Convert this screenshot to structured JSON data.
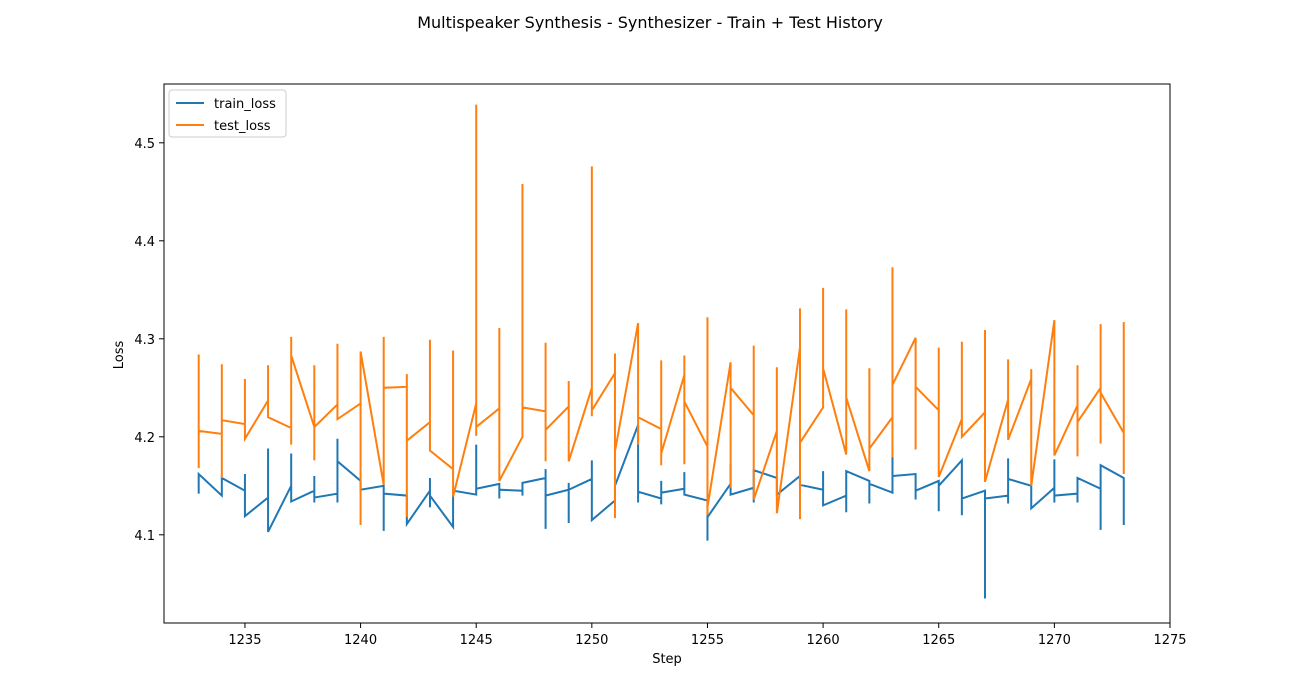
{
  "chart_data": {
    "type": "line",
    "title": "Multispeaker Synthesis - Synthesizer - Train + Test History",
    "xlabel": "Step",
    "ylabel": "Loss",
    "xlim": [
      1231.5,
      1275
    ],
    "ylim": [
      4.01,
      4.56
    ],
    "xticks": [
      1235,
      1240,
      1245,
      1250,
      1255,
      1260,
      1265,
      1270,
      1275
    ],
    "yticks": [
      4.1,
      4.2,
      4.3,
      4.4,
      4.5
    ],
    "grid": false,
    "legend_position": "top-left",
    "series": [
      {
        "name": "train_loss",
        "color": "#1f77b4",
        "points": [
          [
            1233,
            4.142
          ],
          [
            1233,
            4.162
          ],
          [
            1234,
            4.14
          ],
          [
            1234,
            4.158
          ],
          [
            1235,
            4.145
          ],
          [
            1235,
            4.162
          ],
          [
            1235,
            4.119
          ],
          [
            1236,
            4.138
          ],
          [
            1236,
            4.188
          ],
          [
            1236,
            4.103
          ],
          [
            1237,
            4.15
          ],
          [
            1237,
            4.183
          ],
          [
            1237,
            4.134
          ],
          [
            1238,
            4.145
          ],
          [
            1238,
            4.16
          ],
          [
            1238,
            4.133
          ],
          [
            1238,
            4.138
          ],
          [
            1239,
            4.142
          ],
          [
            1239,
            4.133
          ],
          [
            1239,
            4.198
          ],
          [
            1239,
            4.175
          ],
          [
            1240,
            4.155
          ],
          [
            1240,
            4.146
          ],
          [
            1241,
            4.15
          ],
          [
            1241,
            4.104
          ],
          [
            1241,
            4.142
          ],
          [
            1242,
            4.14
          ],
          [
            1242,
            4.111
          ],
          [
            1243,
            4.145
          ],
          [
            1243,
            4.128
          ],
          [
            1243,
            4.158
          ],
          [
            1243,
            4.14
          ],
          [
            1244,
            4.108
          ],
          [
            1244,
            4.145
          ],
          [
            1245,
            4.141
          ],
          [
            1245,
            4.192
          ],
          [
            1245,
            4.147
          ],
          [
            1246,
            4.152
          ],
          [
            1246,
            4.137
          ],
          [
            1246,
            4.146
          ],
          [
            1247,
            4.145
          ],
          [
            1247,
            4.14
          ],
          [
            1247,
            4.153
          ],
          [
            1248,
            4.158
          ],
          [
            1248,
            4.106
          ],
          [
            1248,
            4.167
          ],
          [
            1248,
            4.14
          ],
          [
            1249,
            4.146
          ],
          [
            1249,
            4.112
          ],
          [
            1249,
            4.153
          ],
          [
            1249,
            4.146
          ],
          [
            1250,
            4.157
          ],
          [
            1250,
            4.176
          ],
          [
            1250,
            4.115
          ],
          [
            1251,
            4.135
          ],
          [
            1251,
            4.15
          ],
          [
            1252,
            4.212
          ],
          [
            1252,
            4.133
          ],
          [
            1252,
            4.144
          ],
          [
            1253,
            4.137
          ],
          [
            1253,
            4.131
          ],
          [
            1253,
            4.155
          ],
          [
            1253,
            4.143
          ],
          [
            1254,
            4.147
          ],
          [
            1254,
            4.164
          ],
          [
            1254,
            4.141
          ],
          [
            1255,
            4.135
          ],
          [
            1255,
            4.094
          ],
          [
            1255,
            4.118
          ],
          [
            1256,
            4.152
          ],
          [
            1256,
            4.172
          ],
          [
            1256,
            4.141
          ],
          [
            1257,
            4.148
          ],
          [
            1257,
            4.133
          ],
          [
            1257,
            4.166
          ],
          [
            1258,
            4.158
          ],
          [
            1258,
            4.141
          ],
          [
            1259,
            4.16
          ],
          [
            1259,
            4.151
          ],
          [
            1260,
            4.146
          ],
          [
            1260,
            4.165
          ],
          [
            1260,
            4.13
          ],
          [
            1261,
            4.14
          ],
          [
            1261,
            4.123
          ],
          [
            1261,
            4.165
          ],
          [
            1262,
            4.155
          ],
          [
            1262,
            4.132
          ],
          [
            1262,
            4.152
          ],
          [
            1263,
            4.143
          ],
          [
            1263,
            4.183
          ],
          [
            1263,
            4.16
          ],
          [
            1264,
            4.162
          ],
          [
            1264,
            4.136
          ],
          [
            1264,
            4.145
          ],
          [
            1265,
            4.155
          ],
          [
            1265,
            4.124
          ],
          [
            1265,
            4.15
          ],
          [
            1266,
            4.176
          ],
          [
            1266,
            4.12
          ],
          [
            1266,
            4.137
          ],
          [
            1267,
            4.145
          ],
          [
            1267,
            4.035
          ],
          [
            1267,
            4.137
          ],
          [
            1268,
            4.14
          ],
          [
            1268,
            4.132
          ],
          [
            1268,
            4.178
          ],
          [
            1268,
            4.157
          ],
          [
            1269,
            4.15
          ],
          [
            1269,
            4.127
          ],
          [
            1270,
            4.148
          ],
          [
            1270,
            4.177
          ],
          [
            1270,
            4.133
          ],
          [
            1270,
            4.14
          ],
          [
            1271,
            4.142
          ],
          [
            1271,
            4.133
          ],
          [
            1271,
            4.158
          ],
          [
            1272,
            4.147
          ],
          [
            1272,
            4.105
          ],
          [
            1272,
            4.171
          ],
          [
            1273,
            4.158
          ],
          [
            1273,
            4.11
          ],
          [
            1273,
            4.143
          ]
        ]
      },
      {
        "name": "test_loss",
        "color": "#ff7f0e",
        "points": [
          [
            1233,
            4.168
          ],
          [
            1233,
            4.284
          ],
          [
            1233,
            4.206
          ],
          [
            1234,
            4.203
          ],
          [
            1234,
            4.274
          ],
          [
            1234,
            4.158
          ],
          [
            1234,
            4.217
          ],
          [
            1235,
            4.213
          ],
          [
            1235,
            4.259
          ],
          [
            1235,
            4.198
          ],
          [
            1236,
            4.237
          ],
          [
            1236,
            4.273
          ],
          [
            1236,
            4.22
          ],
          [
            1237,
            4.209
          ],
          [
            1237,
            4.302
          ],
          [
            1237,
            4.192
          ],
          [
            1237,
            4.283
          ],
          [
            1238,
            4.21
          ],
          [
            1238,
            4.273
          ],
          [
            1238,
            4.176
          ],
          [
            1238,
            4.21
          ],
          [
            1239,
            4.233
          ],
          [
            1239,
            4.295
          ],
          [
            1239,
            4.218
          ],
          [
            1240,
            4.234
          ],
          [
            1240,
            4.11
          ],
          [
            1240,
            4.287
          ],
          [
            1241,
            4.151
          ],
          [
            1241,
            4.302
          ],
          [
            1241,
            4.25
          ],
          [
            1242,
            4.251
          ],
          [
            1242,
            4.264
          ],
          [
            1242,
            4.118
          ],
          [
            1242,
            4.196
          ],
          [
            1243,
            4.215
          ],
          [
            1243,
            4.299
          ],
          [
            1243,
            4.186
          ],
          [
            1244,
            4.167
          ],
          [
            1244,
            4.288
          ],
          [
            1244,
            4.139
          ],
          [
            1245,
            4.234
          ],
          [
            1245,
            4.539
          ],
          [
            1245,
            4.201
          ],
          [
            1245,
            4.21
          ],
          [
            1246,
            4.229
          ],
          [
            1246,
            4.311
          ],
          [
            1246,
            4.155
          ],
          [
            1247,
            4.2
          ],
          [
            1247,
            4.458
          ],
          [
            1247,
            4.23
          ],
          [
            1248,
            4.226
          ],
          [
            1248,
            4.296
          ],
          [
            1248,
            4.175
          ],
          [
            1248,
            4.207
          ],
          [
            1249,
            4.231
          ],
          [
            1249,
            4.257
          ],
          [
            1249,
            4.175
          ],
          [
            1250,
            4.25
          ],
          [
            1250,
            4.476
          ],
          [
            1250,
            4.221
          ],
          [
            1250,
            4.227
          ],
          [
            1251,
            4.265
          ],
          [
            1251,
            4.285
          ],
          [
            1251,
            4.117
          ],
          [
            1251,
            4.185
          ],
          [
            1252,
            4.316
          ],
          [
            1252,
            4.192
          ],
          [
            1252,
            4.22
          ],
          [
            1253,
            4.208
          ],
          [
            1253,
            4.278
          ],
          [
            1253,
            4.171
          ],
          [
            1253,
            4.183
          ],
          [
            1254,
            4.263
          ],
          [
            1254,
            4.283
          ],
          [
            1254,
            4.172
          ],
          [
            1254,
            4.236
          ],
          [
            1255,
            4.19
          ],
          [
            1255,
            4.322
          ],
          [
            1255,
            4.12
          ],
          [
            1255,
            4.128
          ],
          [
            1256,
            4.276
          ],
          [
            1256,
            4.148
          ],
          [
            1256,
            4.25
          ],
          [
            1257,
            4.222
          ],
          [
            1257,
            4.293
          ],
          [
            1257,
            4.136
          ],
          [
            1258,
            4.206
          ],
          [
            1258,
            4.271
          ],
          [
            1258,
            4.122
          ],
          [
            1259,
            4.291
          ],
          [
            1259,
            4.331
          ],
          [
            1259,
            4.116
          ],
          [
            1259,
            4.194
          ],
          [
            1260,
            4.23
          ],
          [
            1260,
            4.352
          ],
          [
            1260,
            4.27
          ],
          [
            1261,
            4.182
          ],
          [
            1261,
            4.33
          ],
          [
            1261,
            4.24
          ],
          [
            1262,
            4.165
          ],
          [
            1262,
            4.27
          ],
          [
            1262,
            4.188
          ],
          [
            1263,
            4.22
          ],
          [
            1263,
            4.373
          ],
          [
            1263,
            4.179
          ],
          [
            1263,
            4.253
          ],
          [
            1264,
            4.301
          ],
          [
            1264,
            4.187
          ],
          [
            1264,
            4.251
          ],
          [
            1265,
            4.227
          ],
          [
            1265,
            4.291
          ],
          [
            1265,
            4.159
          ],
          [
            1266,
            4.218
          ],
          [
            1266,
            4.297
          ],
          [
            1266,
            4.2
          ],
          [
            1267,
            4.225
          ],
          [
            1267,
            4.309
          ],
          [
            1267,
            4.154
          ],
          [
            1268,
            4.238
          ],
          [
            1268,
            4.279
          ],
          [
            1268,
            4.197
          ],
          [
            1269,
            4.259
          ],
          [
            1269,
            4.269
          ],
          [
            1269,
            4.15
          ],
          [
            1270,
            4.319
          ],
          [
            1270,
            4.181
          ],
          [
            1271,
            4.232
          ],
          [
            1271,
            4.273
          ],
          [
            1271,
            4.18
          ],
          [
            1271,
            4.215
          ],
          [
            1272,
            4.25
          ],
          [
            1272,
            4.315
          ],
          [
            1272,
            4.193
          ],
          [
            1272,
            4.245
          ],
          [
            1273,
            4.204
          ],
          [
            1273,
            4.317
          ],
          [
            1273,
            4.162
          ]
        ]
      }
    ]
  }
}
